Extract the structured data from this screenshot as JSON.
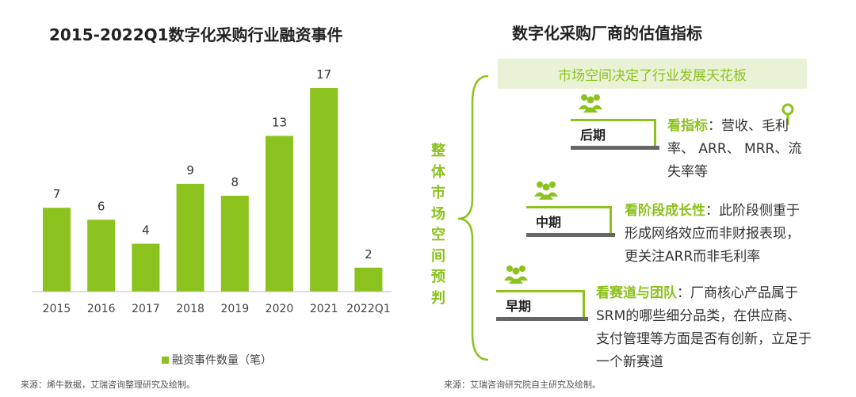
{
  "left_title": "2015-2022Q1数字化采购行业融资事件",
  "right_title": "数字化采购厂商的估值指标",
  "legend_label": "融资事件数量（笔）",
  "source_left": "来源：烯牛数据，艾瑞咨询整理研究及绘制。",
  "source_right": "来源：艾瑞咨询研究院自主研究及绘制。",
  "colors": {
    "accent": "#8cc21d",
    "light_bg": "#eaf2d6",
    "dark": "#666666"
  },
  "chart_data": {
    "type": "bar",
    "title": "2015-2022Q1数字化采购行业融资事件",
    "categories": [
      "2015",
      "2016",
      "2017",
      "2018",
      "2019",
      "2020",
      "2021",
      "2022Q1"
    ],
    "series": [
      {
        "name": "融资事件数量（笔）",
        "values": [
          7,
          6,
          4,
          9,
          8,
          13,
          17,
          2
        ]
      }
    ],
    "xlabel": "",
    "ylabel": "",
    "ylim": [
      0,
      17
    ],
    "grid": false,
    "legend": "bottom"
  },
  "vertical_label": [
    "整",
    "体",
    "市",
    "场",
    "空",
    "间",
    "预",
    "判"
  ],
  "banner": "市场空间决定了行业发展天花板",
  "stages": [
    {
      "name": "后期",
      "icon": "people-group-icon",
      "highlight": "看指标",
      "text": "：营收、毛利率、 ARR、 MRR、流失率等"
    },
    {
      "name": "中期",
      "icon": "people-group-icon",
      "highlight": "看阶段成长性",
      "text": "：此阶段侧重于形成网络效应而非财报表现，更关注ARR而非毛利率"
    },
    {
      "name": "早期",
      "icon": "people-group-icon",
      "highlight": "看赛道与团队",
      "text": "：厂商核心产品属于SRM的哪些细分品类，在供应商、支付管理等方面是否有创新，立足于一个新赛道"
    }
  ]
}
